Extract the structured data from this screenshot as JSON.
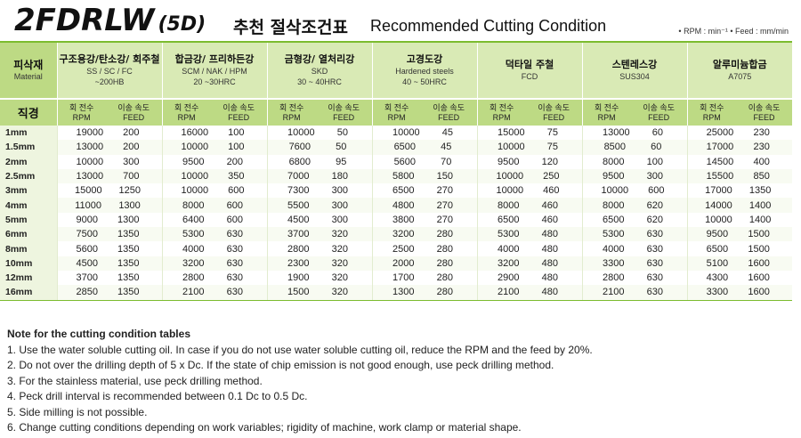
{
  "header": {
    "code": "2FDRLW",
    "code_suffix": "(5D)",
    "title_ko": "추천 절삭조건표",
    "title_en": "Recommended Cutting Condition",
    "units": "• RPM : min⁻¹   • Feed : mm/min"
  },
  "table": {
    "material_label": "피삭재",
    "material_label_en": "Material",
    "diameter_label": "직경",
    "sub_rpm_ko": "회 전수",
    "sub_rpm_en": "RPM",
    "sub_feed_ko": "이송 속도",
    "sub_feed_en": "FEED",
    "materials": [
      {
        "name": "구조용강/탄소강/ 회주철",
        "spec": "SS / SC / FC",
        "hardness": "~200HB"
      },
      {
        "name": "합금강/ 프리하든강",
        "spec": "SCM / NAK / HPM",
        "hardness": "20 ~30HRC"
      },
      {
        "name": "금형강/ 열처리강",
        "spec": "SKD",
        "hardness": "30 ~ 40HRC"
      },
      {
        "name": "고경도강",
        "spec": "Hardened steels",
        "hardness": "40 ~ 50HRC"
      },
      {
        "name": "덕타일 주철",
        "spec": "FCD",
        "hardness": ""
      },
      {
        "name": "스텐레스강",
        "spec": "SUS304",
        "hardness": ""
      },
      {
        "name": "알루미늄합금",
        "spec": "A7075",
        "hardness": ""
      }
    ],
    "rows": [
      {
        "dia": "1mm",
        "vals": [
          [
            "19000",
            "200"
          ],
          [
            "16000",
            "100"
          ],
          [
            "10000",
            "50"
          ],
          [
            "10000",
            "45"
          ],
          [
            "15000",
            "75"
          ],
          [
            "13000",
            "60"
          ],
          [
            "25000",
            "230"
          ]
        ]
      },
      {
        "dia": "1.5mm",
        "vals": [
          [
            "13000",
            "200"
          ],
          [
            "10000",
            "100"
          ],
          [
            "7600",
            "50"
          ],
          [
            "6500",
            "45"
          ],
          [
            "10000",
            "75"
          ],
          [
            "8500",
            "60"
          ],
          [
            "17000",
            "230"
          ]
        ]
      },
      {
        "dia": "2mm",
        "vals": [
          [
            "10000",
            "300"
          ],
          [
            "9500",
            "200"
          ],
          [
            "6800",
            "95"
          ],
          [
            "5600",
            "70"
          ],
          [
            "9500",
            "120"
          ],
          [
            "8000",
            "100"
          ],
          [
            "14500",
            "400"
          ]
        ]
      },
      {
        "dia": "2.5mm",
        "vals": [
          [
            "13000",
            "700"
          ],
          [
            "10000",
            "350"
          ],
          [
            "7000",
            "180"
          ],
          [
            "5800",
            "150"
          ],
          [
            "10000",
            "250"
          ],
          [
            "9500",
            "300"
          ],
          [
            "15500",
            "850"
          ]
        ]
      },
      {
        "dia": "3mm",
        "vals": [
          [
            "15000",
            "1250"
          ],
          [
            "10000",
            "600"
          ],
          [
            "7300",
            "300"
          ],
          [
            "6500",
            "270"
          ],
          [
            "10000",
            "460"
          ],
          [
            "10000",
            "600"
          ],
          [
            "17000",
            "1350"
          ]
        ]
      },
      {
        "dia": "4mm",
        "vals": [
          [
            "11000",
            "1300"
          ],
          [
            "8000",
            "600"
          ],
          [
            "5500",
            "300"
          ],
          [
            "4800",
            "270"
          ],
          [
            "8000",
            "460"
          ],
          [
            "8000",
            "620"
          ],
          [
            "14000",
            "1400"
          ]
        ]
      },
      {
        "dia": "5mm",
        "vals": [
          [
            "9000",
            "1300"
          ],
          [
            "6400",
            "600"
          ],
          [
            "4500",
            "300"
          ],
          [
            "3800",
            "270"
          ],
          [
            "6500",
            "460"
          ],
          [
            "6500",
            "620"
          ],
          [
            "10000",
            "1400"
          ]
        ]
      },
      {
        "dia": "6mm",
        "vals": [
          [
            "7500",
            "1350"
          ],
          [
            "5300",
            "630"
          ],
          [
            "3700",
            "320"
          ],
          [
            "3200",
            "280"
          ],
          [
            "5300",
            "480"
          ],
          [
            "5300",
            "630"
          ],
          [
            "9500",
            "1500"
          ]
        ]
      },
      {
        "dia": "8mm",
        "vals": [
          [
            "5600",
            "1350"
          ],
          [
            "4000",
            "630"
          ],
          [
            "2800",
            "320"
          ],
          [
            "2500",
            "280"
          ],
          [
            "4000",
            "480"
          ],
          [
            "4000",
            "630"
          ],
          [
            "6500",
            "1500"
          ]
        ]
      },
      {
        "dia": "10mm",
        "vals": [
          [
            "4500",
            "1350"
          ],
          [
            "3200",
            "630"
          ],
          [
            "2300",
            "320"
          ],
          [
            "2000",
            "280"
          ],
          [
            "3200",
            "480"
          ],
          [
            "3300",
            "630"
          ],
          [
            "5100",
            "1600"
          ]
        ]
      },
      {
        "dia": "12mm",
        "vals": [
          [
            "3700",
            "1350"
          ],
          [
            "2800",
            "630"
          ],
          [
            "1900",
            "320"
          ],
          [
            "1700",
            "280"
          ],
          [
            "2900",
            "480"
          ],
          [
            "2800",
            "630"
          ],
          [
            "4300",
            "1600"
          ]
        ]
      },
      {
        "dia": "16mm",
        "vals": [
          [
            "2850",
            "1350"
          ],
          [
            "2100",
            "630"
          ],
          [
            "1500",
            "320"
          ],
          [
            "1300",
            "280"
          ],
          [
            "2100",
            "480"
          ],
          [
            "2100",
            "630"
          ],
          [
            "3300",
            "1600"
          ]
        ]
      }
    ]
  },
  "notes": {
    "title": "Note for the cutting condition tables",
    "items": [
      "1. Use the water soluble cutting oil. In case if you do not use water soluble cutting oil, reduce the RPM and the feed by 20%.",
      "2. Do not over the drilling depth of 5 x Dc. If the state of chip emission is not good enough, use peck drilling method.",
      "3. For the stainless material, use peck drilling method.",
      "4. Peck drill interval is recommended between 0.1 Dc to 0.5 Dc.",
      "5. Side milling is not possible.",
      "6. Change cutting conditions depending on work variables; rigidity of machine, work clamp or material shape."
    ]
  }
}
